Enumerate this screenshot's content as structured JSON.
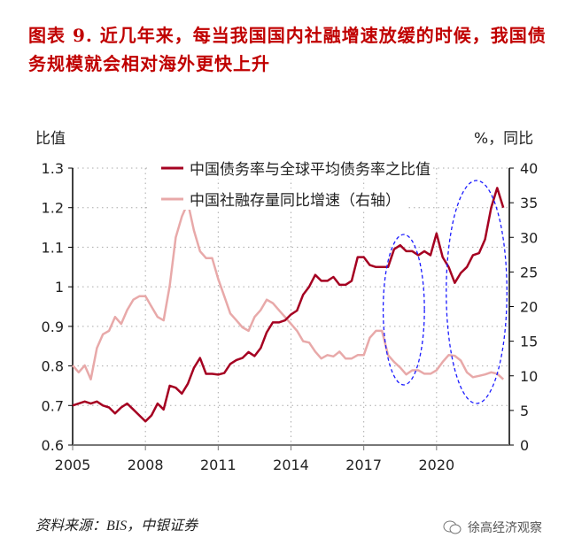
{
  "title": "图表 9. 近几年来，每当我国国内社融增速放缓的时候，我国债务规模就会相对海外更快上升",
  "source": "资料来源：BIS，中银证券",
  "watermark": "徐高经济观察",
  "colors": {
    "ratio": "#a50021",
    "tsf": "#e8a9a9",
    "highlight": "#1a1aff",
    "title": "#c00000"
  },
  "chart_data": {
    "type": "line",
    "xlabel": "",
    "ylabel_left": "比值",
    "ylabel_right": "%，同比",
    "x_ticks": [
      "2005",
      "2008",
      "2011",
      "2014",
      "2017",
      "2020"
    ],
    "xlim": [
      2005,
      2023
    ],
    "ylim_left": [
      0.6,
      1.3
    ],
    "left_ticks": [
      "0.6",
      "0.7",
      "0.8",
      "0.9",
      "1",
      "1.1",
      "1.2",
      "1.3"
    ],
    "ylim_right": [
      0,
      40
    ],
    "right_ticks": [
      "0",
      "5",
      "10",
      "15",
      "20",
      "25",
      "30",
      "35",
      "40"
    ],
    "grid": true,
    "legend": "top",
    "x_start": 2005,
    "x_step": 0.25,
    "series": [
      {
        "name": "中国债务率与全球平均债务率之比值",
        "axis": "left",
        "values": [
          0.7,
          0.705,
          0.71,
          0.705,
          0.71,
          0.7,
          0.695,
          0.68,
          0.695,
          0.705,
          0.69,
          0.675,
          0.66,
          0.675,
          0.705,
          0.69,
          0.75,
          0.745,
          0.73,
          0.755,
          0.795,
          0.82,
          0.78,
          0.78,
          0.778,
          0.782,
          0.805,
          0.815,
          0.82,
          0.835,
          0.825,
          0.845,
          0.885,
          0.91,
          0.91,
          0.915,
          0.93,
          0.94,
          0.98,
          1.0,
          1.03,
          1.015,
          1.015,
          1.025,
          1.005,
          1.005,
          1.015,
          1.075,
          1.075,
          1.055,
          1.05,
          1.05,
          1.05,
          1.095,
          1.105,
          1.09,
          1.09,
          1.08,
          1.09,
          1.08,
          1.135,
          1.075,
          1.05,
          1.01,
          1.035,
          1.05,
          1.08,
          1.085,
          1.12,
          1.2,
          1.25,
          1.2
        ]
      },
      {
        "name": "中国社融存量同比增速（右轴）",
        "axis": "right",
        "values": [
          11.5,
          10.5,
          11.5,
          9.5,
          14,
          16,
          16.5,
          18.5,
          17.5,
          19.5,
          21,
          21.5,
          21.5,
          20,
          18.5,
          18,
          23,
          30,
          33,
          35,
          31,
          28,
          27,
          27,
          24,
          21.5,
          19,
          18,
          17,
          16.5,
          18.5,
          19.5,
          21,
          20.5,
          19.5,
          18.5,
          17.5,
          16.5,
          15,
          14.8,
          13.5,
          12.5,
          13,
          12.8,
          13.5,
          12.5,
          12.5,
          13,
          13,
          15.5,
          16.5,
          16.5,
          13,
          12,
          11.2,
          10.2,
          10.8,
          10.8,
          10.3,
          10.3,
          10.8,
          12,
          13,
          12.9,
          12.2,
          10.5,
          9.8,
          10,
          10.2,
          10.5,
          10.3,
          9.5
        ]
      }
    ],
    "annotations": [
      {
        "type": "dashed-ellipse",
        "x_range": [
          2017.8,
          2019.5
        ]
      },
      {
        "type": "dashed-ellipse",
        "x_range": [
          2020.4,
          2022.9
        ]
      }
    ]
  }
}
